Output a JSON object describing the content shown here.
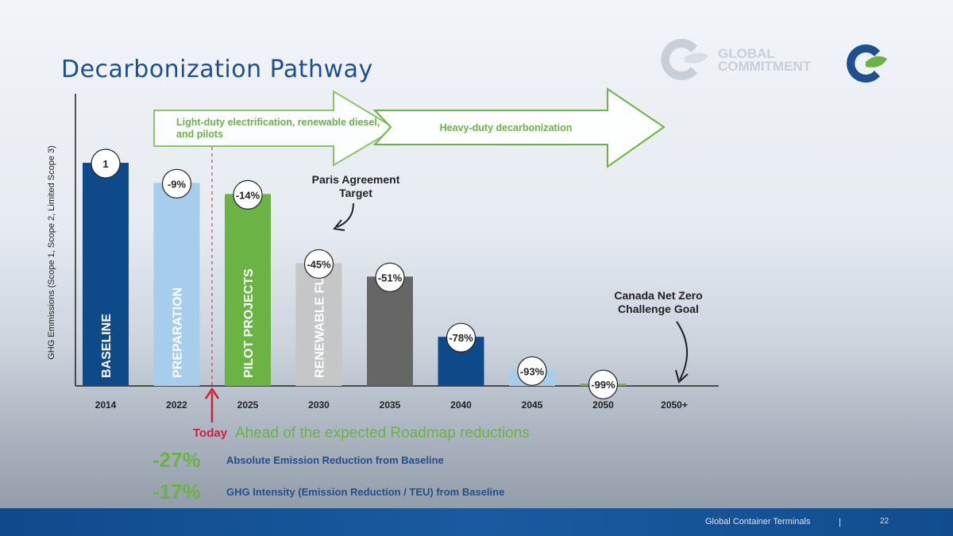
{
  "slide": {
    "title": "Decarbonization Pathway",
    "today_label": "Today",
    "ahead_text": "Ahead of the expected Roadmap reductions",
    "stats": [
      {
        "value": "-27%",
        "label": "Absolute Emission Reduction from Baseline"
      },
      {
        "value": "-17%",
        "label": "GHG Intensity (Emission Reduction / TEU) from Baseline"
      }
    ],
    "footer_company": "Global Container Terminals",
    "footer_separator": "|",
    "page_number": "22",
    "watermark_text": [
      "GLOBAL",
      "COMMITMENT"
    ]
  },
  "colors": {
    "title": "#1d4f91",
    "accent_green": "#6ab344",
    "today_red": "#d1203a",
    "dark_blue": "#0e4a8a",
    "light_blue": "#a6cdeb",
    "grey": "#c4c6c8",
    "dark_grey": "#666666"
  },
  "chart_data": {
    "type": "bar",
    "ylabel": "GHG Emmissions (Scope 1, Scope 2, Limited Scope 3)",
    "categories": [
      "2014",
      "2022",
      "2025",
      "2030",
      "2035",
      "2040",
      "2045",
      "2050",
      "2050+"
    ],
    "values": [
      100,
      91,
      86,
      55,
      49,
      22,
      7,
      1,
      0
    ],
    "value_labels": [
      "1",
      "-9%",
      "-14%",
      "-45%",
      "-51%",
      "-78%",
      "-93%",
      "-99%",
      ""
    ],
    "bar_labels": [
      "BASELINE",
      "PREPARATION",
      "PILOT PROJECTS",
      "RENEWABLE FUELS",
      "",
      "",
      "",
      "",
      ""
    ],
    "bar_colors": [
      "#0e4a8a",
      "#a6cdeb",
      "#6ab344",
      "#c4c6c8",
      "#666666",
      "#0e4a8a",
      "#a6cdeb",
      "#6ab344",
      "none"
    ],
    "ylim": [
      0,
      100
    ],
    "arrows": [
      {
        "text": "Light-duty electrification, renewable diesel, and pilots"
      },
      {
        "text": "Heavy-duty decarbonization"
      }
    ],
    "annotations": [
      {
        "text": "Paris Agreement Target"
      },
      {
        "text": "Canada Net Zero Challenge Goal"
      }
    ]
  }
}
